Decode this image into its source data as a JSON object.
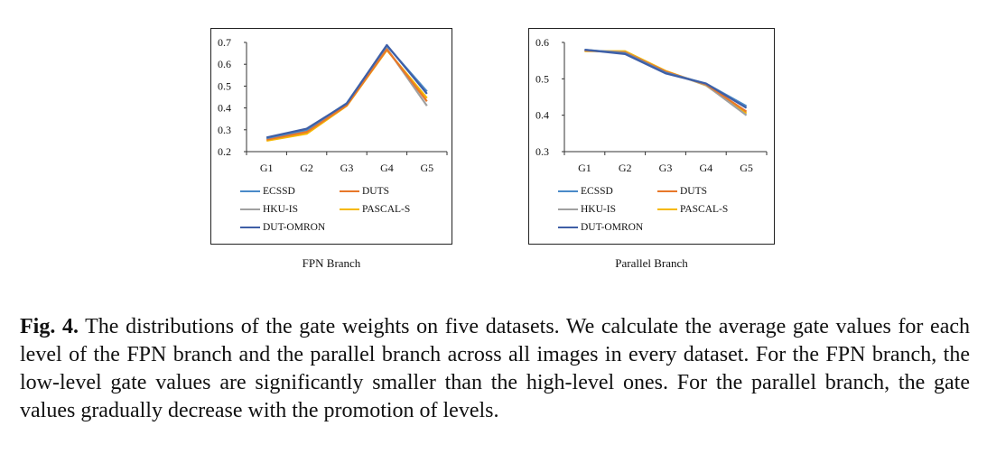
{
  "caption": {
    "fig_label": "Fig. 4.",
    "text": " The distributions of the gate weights on five datasets. We calculate the average gate values for each level of the FPN branch and the parallel branch across all images in every dataset. For the FPN branch, the low-level gate values are significantly smaller than the high-level ones. For the parallel branch, the gate values gradually decrease with the promotion of levels."
  },
  "colors": {
    "ECSSD": "#4a8ac8",
    "DUTS": "#e8782a",
    "HKU-IS": "#a0a0a0",
    "PASCAL-S": "#f5b800",
    "DUT-OMRON": "#3f5fa6"
  },
  "chart_data": [
    {
      "type": "line",
      "title": "FPN Branch",
      "categories": [
        "G1",
        "G2",
        "G3",
        "G4",
        "G5"
      ],
      "ylim": [
        0.2,
        0.7
      ],
      "yticks": [
        "0.2",
        "0.3",
        "0.4",
        "0.5",
        "0.6",
        "0.7"
      ],
      "grid": false,
      "legend": "bottom",
      "series": [
        {
          "name": "ECSSD",
          "values": [
            0.262,
            0.3,
            0.422,
            0.685,
            0.475
          ]
        },
        {
          "name": "DUTS",
          "values": [
            0.255,
            0.29,
            0.412,
            0.668,
            0.43
          ]
        },
        {
          "name": "HKU-IS",
          "values": [
            0.258,
            0.295,
            0.418,
            0.672,
            0.41
          ]
        },
        {
          "name": "PASCAL-S",
          "values": [
            0.25,
            0.282,
            0.41,
            0.665,
            0.445
          ]
        },
        {
          "name": "DUT-OMRON",
          "values": [
            0.265,
            0.305,
            0.42,
            0.688,
            0.465
          ]
        }
      ]
    },
    {
      "type": "line",
      "title": "Parallel Branch",
      "categories": [
        "G1",
        "G2",
        "G3",
        "G4",
        "G5"
      ],
      "ylim": [
        0.3,
        0.6
      ],
      "yticks": [
        "0.3",
        "0.4",
        "0.5",
        "0.6"
      ],
      "grid": false,
      "legend": "bottom",
      "series": [
        {
          "name": "ECSSD",
          "values": [
            0.58,
            0.57,
            0.517,
            0.487,
            0.425
          ]
        },
        {
          "name": "DUTS",
          "values": [
            0.578,
            0.572,
            0.52,
            0.485,
            0.41
          ]
        },
        {
          "name": "HKU-IS",
          "values": [
            0.578,
            0.573,
            0.52,
            0.483,
            0.4
          ]
        },
        {
          "name": "PASCAL-S",
          "values": [
            0.576,
            0.576,
            0.522,
            0.482,
            0.405
          ]
        },
        {
          "name": "DUT-OMRON",
          "values": [
            0.58,
            0.568,
            0.515,
            0.487,
            0.42
          ]
        }
      ]
    }
  ]
}
